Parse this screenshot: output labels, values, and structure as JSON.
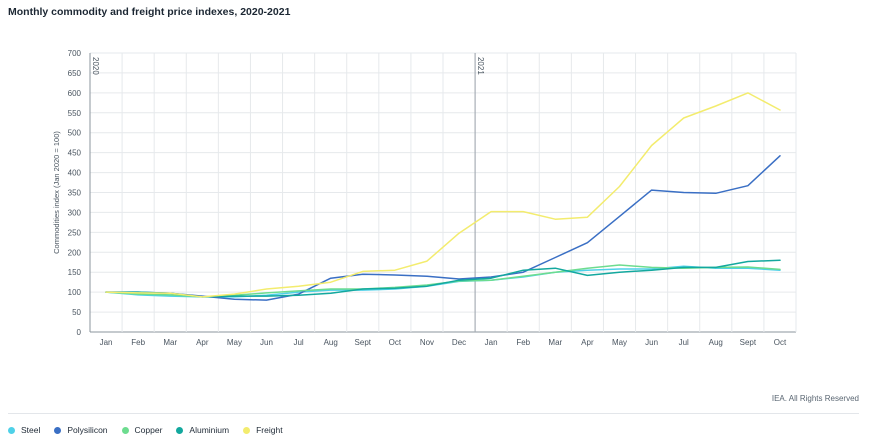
{
  "chart_data": {
    "type": "line",
    "title": "Monthly commodity and freight price indexes, 2020-2021",
    "ylabel": "Commodities index (Jan 2020 = 100)",
    "xlabel": "",
    "ylim": [
      0,
      700
    ],
    "yticks": [
      0,
      50,
      100,
      150,
      200,
      250,
      300,
      350,
      400,
      450,
      500,
      550,
      600,
      650,
      700
    ],
    "categories": [
      "Jan",
      "Feb",
      "Mar",
      "Apr",
      "May",
      "Jun",
      "Jul",
      "Aug",
      "Sept",
      "Oct",
      "Nov",
      "Dec",
      "Jan",
      "Feb",
      "Mar",
      "Apr",
      "May",
      "Jun",
      "Jul",
      "Aug",
      "Sept",
      "Oct"
    ],
    "year_markers": [
      {
        "label": "2020",
        "index": 0
      },
      {
        "label": "2021",
        "index": 12
      }
    ],
    "series": [
      {
        "name": "Steel",
        "color": "#4fd1e8",
        "values": [
          100,
          93,
          90,
          88,
          88,
          92,
          100,
          105,
          105,
          108,
          115,
          127,
          130,
          138,
          150,
          155,
          158,
          158,
          165,
          160,
          160,
          155
        ]
      },
      {
        "name": "Polysilicon",
        "color": "#3a6fc4",
        "values": [
          100,
          100,
          97,
          90,
          82,
          80,
          95,
          135,
          145,
          143,
          140,
          133,
          138,
          150,
          187,
          224,
          290,
          356,
          350,
          348,
          367,
          442
        ]
      },
      {
        "name": "Copper",
        "color": "#6ddc8f",
        "values": [
          100,
          95,
          93,
          88,
          92,
          98,
          103,
          108,
          108,
          112,
          118,
          128,
          130,
          140,
          150,
          160,
          168,
          162,
          160,
          162,
          163,
          157
        ]
      },
      {
        "name": "Aluminium",
        "color": "#13a89e",
        "values": [
          100,
          100,
          97,
          88,
          90,
          90,
          92,
          97,
          108,
          110,
          115,
          130,
          135,
          155,
          160,
          142,
          150,
          155,
          162,
          162,
          177,
          180
        ]
      },
      {
        "name": "Freight",
        "color": "#f3ec6e",
        "values": [
          100,
          98,
          97,
          88,
          95,
          108,
          115,
          125,
          152,
          155,
          178,
          248,
          302,
          302,
          283,
          288,
          365,
          468,
          537,
          567,
          600,
          557
        ]
      }
    ],
    "grid": true,
    "legend": "bottom-left"
  },
  "credit": "IEA. All Rights Reserved"
}
